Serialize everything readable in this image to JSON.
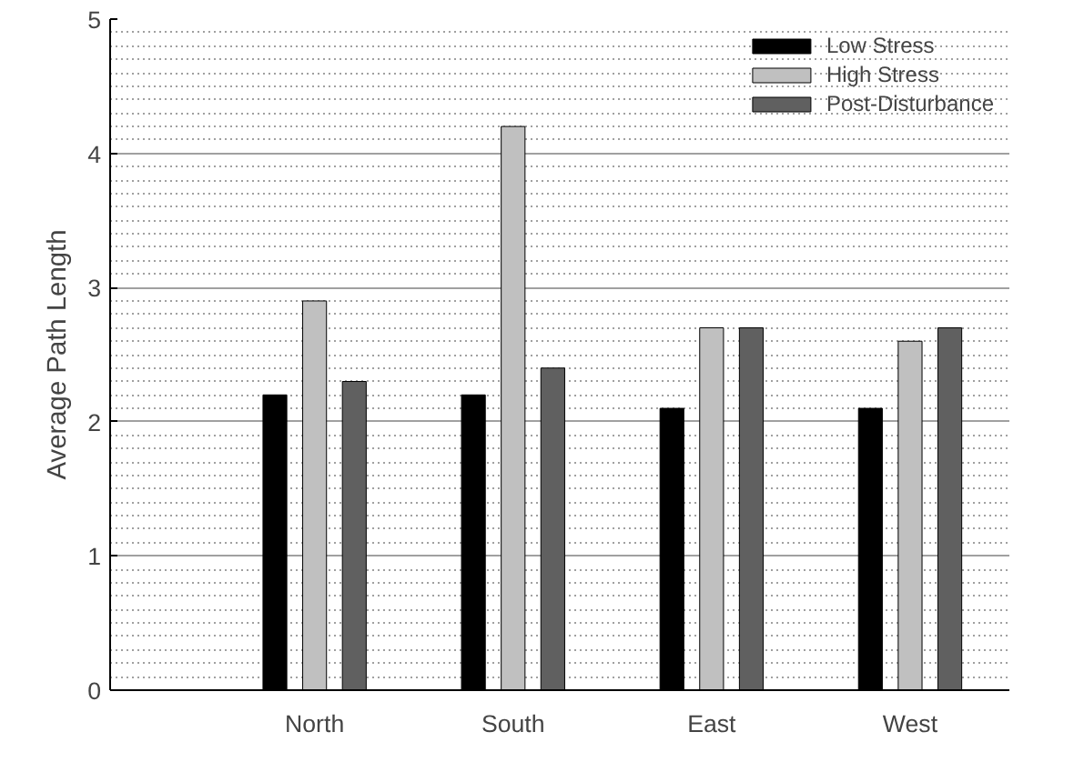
{
  "chart_data": {
    "type": "bar",
    "ylabel": "Average Path Length",
    "categories": [
      "North",
      "South",
      "East",
      "West"
    ],
    "series": [
      {
        "name": "Low Stress",
        "color": "#000000",
        "values": [
          2.2,
          2.2,
          2.1,
          2.1
        ]
      },
      {
        "name": "High Stress",
        "color": "#c0c0c0",
        "values": [
          2.9,
          4.2,
          2.7,
          2.6
        ]
      },
      {
        "name": "Post-Disturbance",
        "color": "#606060",
        "values": [
          2.3,
          2.4,
          2.7,
          2.7
        ]
      }
    ],
    "ylim": [
      0,
      5
    ],
    "yticks": [
      0,
      1,
      2,
      3,
      4,
      5
    ],
    "grid": "y",
    "legend": "top right"
  }
}
